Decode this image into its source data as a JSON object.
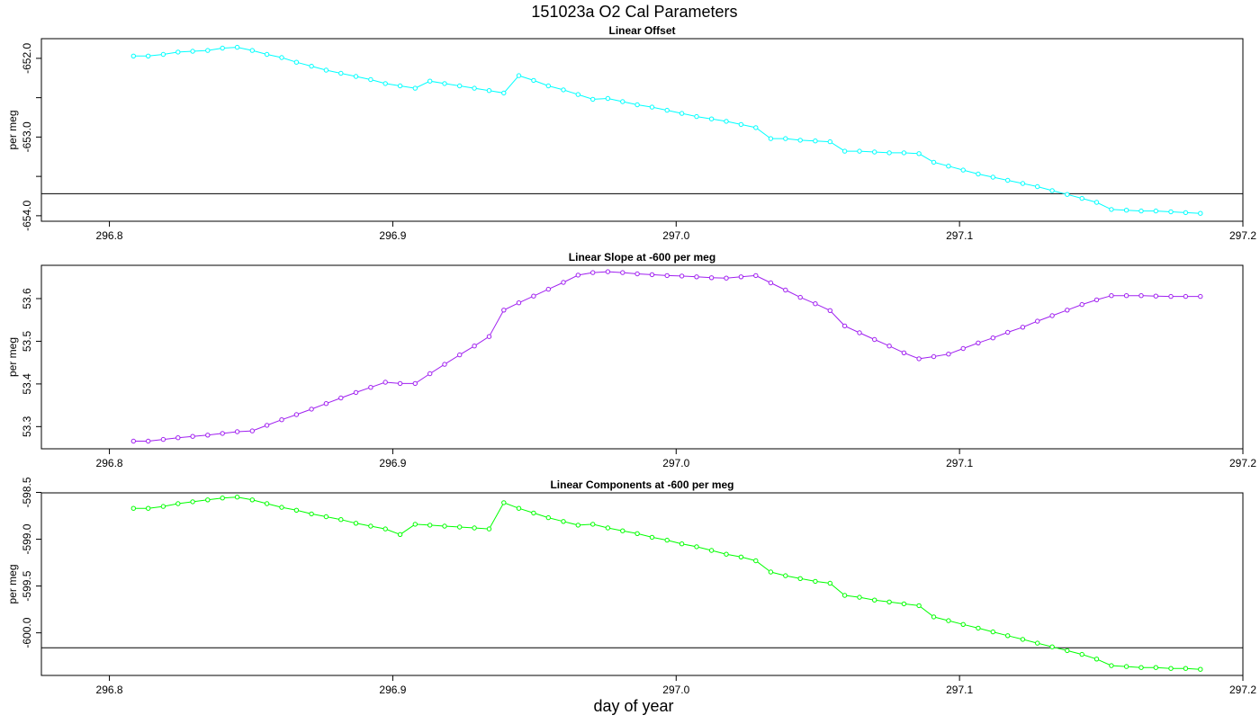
{
  "main_title": "151023a   O2 Cal Parameters",
  "xlabel": "day of year",
  "colors": {
    "offset": "#00FFFF",
    "slope": "#A020F0",
    "components": "#00FF00",
    "frame": "#000000"
  },
  "chart_data": [
    {
      "type": "line",
      "title": "Linear Offset",
      "ylabel": "per meg",
      "xlim": [
        296.776,
        297.2
      ],
      "ylim": [
        -654.07,
        -651.75
      ],
      "xticks": [
        "296.8",
        "296.9",
        "297.0",
        "297.1",
        "297.2"
      ],
      "xtick_values": [
        296.8,
        296.9,
        297.0,
        297.1,
        297.2
      ],
      "yticks": [
        "-652.0",
        "-653.0",
        "-654.0"
      ],
      "ytick_values": [
        -652.0,
        -653.0,
        -654.0
      ],
      "yminor_ticks": [
        -652.5,
        -653.5
      ],
      "hline": -653.72,
      "x": [
        296.8085,
        296.8137,
        296.819,
        296.8242,
        296.8294,
        296.8347,
        296.8399,
        296.8451,
        296.8504,
        296.8556,
        296.8608,
        296.866,
        296.8713,
        296.8765,
        296.8817,
        296.887,
        296.8922,
        296.8974,
        296.9026,
        296.9079,
        296.9131,
        296.9183,
        296.9236,
        296.9288,
        296.934,
        296.9392,
        296.9445,
        296.9497,
        296.9549,
        296.9602,
        296.9654,
        296.9706,
        296.9759,
        296.9811,
        296.9863,
        296.9915,
        296.9968,
        297.002,
        297.0072,
        297.0125,
        297.0177,
        297.0229,
        297.0281,
        297.0334,
        297.0386,
        297.0438,
        297.0491,
        297.0543,
        297.0595,
        297.0647,
        297.07,
        297.0752,
        297.0804,
        297.0857,
        297.0909,
        297.0961,
        297.1013,
        297.1066,
        297.1118,
        297.117,
        297.1223,
        297.1275,
        297.1327,
        297.138,
        297.1432,
        297.1484,
        297.1536,
        297.1589,
        297.1641,
        297.1693,
        297.1746,
        297.1798,
        297.185
      ],
      "y": [
        -651.97,
        -651.97,
        -651.95,
        -651.92,
        -651.91,
        -651.9,
        -651.87,
        -651.86,
        -651.9,
        -651.95,
        -651.99,
        -652.05,
        -652.1,
        -652.15,
        -652.19,
        -652.23,
        -652.27,
        -652.32,
        -652.35,
        -652.38,
        -652.29,
        -652.32,
        -652.35,
        -652.38,
        -652.41,
        -652.44,
        -652.22,
        -652.28,
        -652.35,
        -652.4,
        -652.46,
        -652.52,
        -652.51,
        -652.55,
        -652.59,
        -652.62,
        -652.66,
        -652.7,
        -652.74,
        -652.77,
        -652.8,
        -652.84,
        -652.88,
        -653.02,
        -653.02,
        -653.04,
        -653.05,
        -653.06,
        -653.18,
        -653.18,
        -653.19,
        -653.2,
        -653.2,
        -653.21,
        -653.32,
        -653.37,
        -653.42,
        -653.47,
        -653.51,
        -653.55,
        -653.59,
        -653.63,
        -653.68,
        -653.73,
        -653.78,
        -653.83,
        -653.92,
        -653.93,
        -653.94,
        -653.94,
        -653.95,
        -653.96,
        -653.97
      ]
    },
    {
      "type": "line",
      "title": "Linear Slope at -600 per meg",
      "ylabel": "per meg",
      "xlim": [
        296.776,
        297.2
      ],
      "ylim": [
        53.248,
        53.678
      ],
      "xticks": [
        "296.8",
        "296.9",
        "297.0",
        "297.1",
        "297.2"
      ],
      "xtick_values": [
        296.8,
        296.9,
        297.0,
        297.1,
        297.2
      ],
      "yticks": [
        "53.3",
        "53.4",
        "53.5",
        "53.6"
      ],
      "ytick_values": [
        53.3,
        53.4,
        53.5,
        53.6
      ],
      "yminor_ticks": [],
      "x": [
        296.8085,
        296.8137,
        296.819,
        296.8242,
        296.8294,
        296.8347,
        296.8399,
        296.8451,
        296.8504,
        296.8556,
        296.8608,
        296.866,
        296.8713,
        296.8765,
        296.8817,
        296.887,
        296.8922,
        296.8974,
        296.9026,
        296.9079,
        296.9131,
        296.9183,
        296.9236,
        296.9288,
        296.934,
        296.9392,
        296.9445,
        296.9497,
        296.9549,
        296.9602,
        296.9654,
        296.9706,
        296.9759,
        296.9811,
        296.9863,
        296.9915,
        296.9968,
        297.002,
        297.0072,
        297.0125,
        297.0177,
        297.0229,
        297.0281,
        297.0334,
        297.0386,
        297.0438,
        297.0491,
        297.0543,
        297.0595,
        297.0647,
        297.07,
        297.0752,
        297.0804,
        297.0857,
        297.0909,
        297.0961,
        297.1013,
        297.1066,
        297.1118,
        297.117,
        297.1223,
        297.1275,
        297.1327,
        297.138,
        297.1432,
        297.1484,
        297.1536,
        297.1589,
        297.1641,
        297.1693,
        297.1746,
        297.1798,
        297.185
      ],
      "y": [
        53.266,
        53.266,
        53.27,
        53.274,
        53.277,
        53.28,
        53.284,
        53.288,
        53.29,
        53.303,
        53.316,
        53.328,
        53.341,
        53.354,
        53.367,
        53.38,
        53.392,
        53.404,
        53.401,
        53.401,
        53.424,
        53.446,
        53.468,
        53.489,
        53.511,
        53.573,
        53.59,
        53.606,
        53.622,
        53.638,
        53.655,
        53.661,
        53.663,
        53.661,
        53.658,
        53.656,
        53.654,
        53.653,
        53.651,
        53.649,
        53.648,
        53.651,
        53.654,
        53.637,
        53.62,
        53.603,
        53.588,
        53.572,
        53.536,
        53.52,
        53.504,
        53.489,
        53.473,
        53.459,
        53.464,
        53.47,
        53.483,
        53.496,
        53.508,
        53.521,
        53.533,
        53.547,
        53.56,
        53.573,
        53.586,
        53.597,
        53.607,
        53.607,
        53.607,
        53.606,
        53.605,
        53.605,
        53.605
      ]
    },
    {
      "type": "line",
      "title": "Linear Components at -600 per meg",
      "ylabel": "per meg",
      "xlim": [
        296.776,
        297.2
      ],
      "ylim": [
        -600.455,
        -598.505
      ],
      "xticks": [
        "296.8",
        "296.9",
        "297.0",
        "297.1",
        "297.2"
      ],
      "xtick_values": [
        296.8,
        296.9,
        297.0,
        297.1,
        297.2
      ],
      "yticks": [
        "-598.5",
        "-599.0",
        "-599.5",
        "-600.0"
      ],
      "ytick_values": [
        -598.5,
        -599.0,
        -599.5,
        -600.0
      ],
      "yminor_ticks": [],
      "hline": -600.16,
      "x": [
        296.8085,
        296.8137,
        296.819,
        296.8242,
        296.8294,
        296.8347,
        296.8399,
        296.8451,
        296.8504,
        296.8556,
        296.8608,
        296.866,
        296.8713,
        296.8765,
        296.8817,
        296.887,
        296.8922,
        296.8974,
        296.9026,
        296.9079,
        296.9131,
        296.9183,
        296.9236,
        296.9288,
        296.934,
        296.9392,
        296.9445,
        296.9497,
        296.9549,
        296.9602,
        296.9654,
        296.9706,
        296.9759,
        296.9811,
        296.9863,
        296.9915,
        296.9968,
        297.002,
        297.0072,
        297.0125,
        297.0177,
        297.0229,
        297.0281,
        297.0334,
        297.0386,
        297.0438,
        297.0491,
        297.0543,
        297.0595,
        297.0647,
        297.07,
        297.0752,
        297.0804,
        297.0857,
        297.0909,
        297.0961,
        297.1013,
        297.1066,
        297.1118,
        297.117,
        297.1223,
        297.1275,
        297.1327,
        297.138,
        297.1432,
        297.1484,
        297.1536,
        297.1589,
        297.1641,
        297.1693,
        297.1746,
        297.1798,
        297.185
      ],
      "y": [
        -598.67,
        -598.67,
        -598.65,
        -598.62,
        -598.6,
        -598.58,
        -598.56,
        -598.55,
        -598.58,
        -598.62,
        -598.66,
        -598.69,
        -598.73,
        -598.76,
        -598.79,
        -598.83,
        -598.86,
        -598.89,
        -598.95,
        -598.84,
        -598.85,
        -598.86,
        -598.87,
        -598.88,
        -598.89,
        -598.61,
        -598.67,
        -598.72,
        -598.77,
        -598.81,
        -598.85,
        -598.84,
        -598.88,
        -598.91,
        -598.94,
        -598.98,
        -599.01,
        -599.05,
        -599.08,
        -599.12,
        -599.16,
        -599.19,
        -599.23,
        -599.35,
        -599.39,
        -599.42,
        -599.45,
        -599.47,
        -599.6,
        -599.62,
        -599.65,
        -599.67,
        -599.69,
        -599.71,
        -599.83,
        -599.87,
        -599.91,
        -599.95,
        -599.99,
        -600.03,
        -600.07,
        -600.11,
        -600.15,
        -600.19,
        -600.23,
        -600.28,
        -600.35,
        -600.36,
        -600.37,
        -600.37,
        -600.38,
        -600.38,
        -600.39
      ]
    }
  ]
}
